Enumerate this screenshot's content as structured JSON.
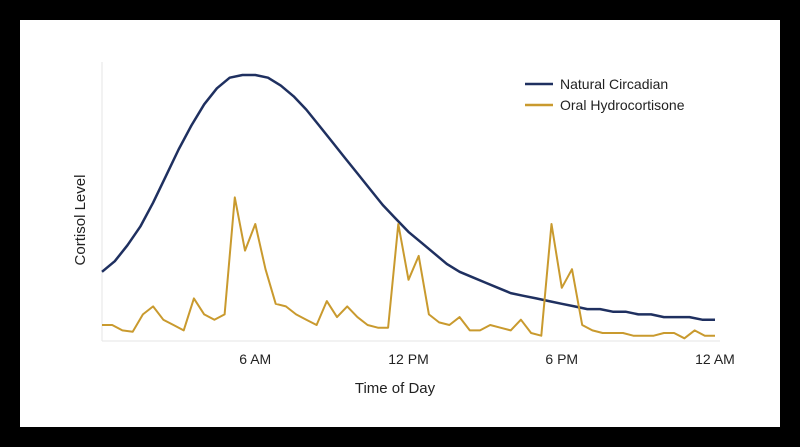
{
  "chart_data": {
    "type": "line",
    "title": "",
    "xlabel": "Time of Day",
    "ylabel": "Cortisol Level",
    "x_ticks": [
      {
        "hour": 6,
        "label": "6 AM"
      },
      {
        "hour": 12,
        "label": "12 PM"
      },
      {
        "hour": 18,
        "label": "6 PM"
      },
      {
        "hour": 24,
        "label": "12 AM"
      }
    ],
    "xlim": [
      0,
      24
    ],
    "ylim": [
      0,
      1
    ],
    "grid": false,
    "legend_position": "top-right",
    "series": [
      {
        "name": "Natural Circadian",
        "color": "#1f3060",
        "x": [
          0,
          0.5,
          1,
          1.5,
          2,
          2.5,
          3,
          3.5,
          4,
          4.5,
          5,
          5.5,
          6,
          6.5,
          7,
          7.5,
          8,
          8.5,
          9,
          9.5,
          10,
          10.5,
          11,
          11.5,
          12,
          12.5,
          13,
          13.5,
          14,
          14.5,
          15,
          15.5,
          16,
          16.5,
          17,
          17.5,
          18,
          18.5,
          19,
          19.5,
          20,
          20.5,
          21,
          21.5,
          22,
          22.5,
          23,
          23.5,
          24
        ],
        "y": [
          0.26,
          0.3,
          0.36,
          0.43,
          0.52,
          0.62,
          0.72,
          0.81,
          0.89,
          0.95,
          0.99,
          1.0,
          1.0,
          0.99,
          0.96,
          0.92,
          0.87,
          0.81,
          0.75,
          0.69,
          0.63,
          0.57,
          0.51,
          0.46,
          0.41,
          0.37,
          0.33,
          0.29,
          0.26,
          0.24,
          0.22,
          0.2,
          0.18,
          0.17,
          0.16,
          0.15,
          0.14,
          0.13,
          0.12,
          0.12,
          0.11,
          0.11,
          0.1,
          0.1,
          0.09,
          0.09,
          0.09,
          0.08,
          0.08
        ]
      },
      {
        "name": "Oral Hydrocortisone",
        "color": "#c99a2e",
        "x": [
          0,
          0.4,
          0.8,
          1.2,
          1.6,
          2.0,
          2.4,
          2.8,
          3.2,
          3.6,
          4.0,
          4.4,
          4.8,
          5.2,
          5.6,
          6.0,
          6.4,
          6.8,
          7.2,
          7.6,
          8.0,
          8.4,
          8.8,
          9.2,
          9.6,
          10.0,
          10.4,
          10.8,
          11.2,
          11.6,
          12.0,
          12.4,
          12.8,
          13.2,
          13.6,
          14.0,
          14.4,
          14.8,
          15.2,
          15.6,
          16.0,
          16.4,
          16.8,
          17.2,
          17.6,
          18.0,
          18.4,
          18.8,
          19.2,
          19.6,
          20.0,
          20.4,
          20.8,
          21.2,
          21.6,
          22.0,
          22.4,
          22.8,
          23.2,
          23.6,
          24.0
        ],
        "y": [
          0.06,
          0.06,
          0.04,
          0.035,
          0.1,
          0.13,
          0.08,
          0.06,
          0.04,
          0.16,
          0.1,
          0.08,
          0.1,
          0.54,
          0.34,
          0.44,
          0.27,
          0.14,
          0.13,
          0.1,
          0.08,
          0.06,
          0.15,
          0.09,
          0.13,
          0.09,
          0.06,
          0.05,
          0.05,
          0.44,
          0.23,
          0.32,
          0.1,
          0.07,
          0.06,
          0.09,
          0.04,
          0.04,
          0.06,
          0.05,
          0.04,
          0.08,
          0.03,
          0.02,
          0.44,
          0.2,
          0.27,
          0.06,
          0.04,
          0.03,
          0.03,
          0.03,
          0.02,
          0.02,
          0.02,
          0.03,
          0.03,
          0.01,
          0.04,
          0.02,
          0.02
        ]
      }
    ]
  }
}
